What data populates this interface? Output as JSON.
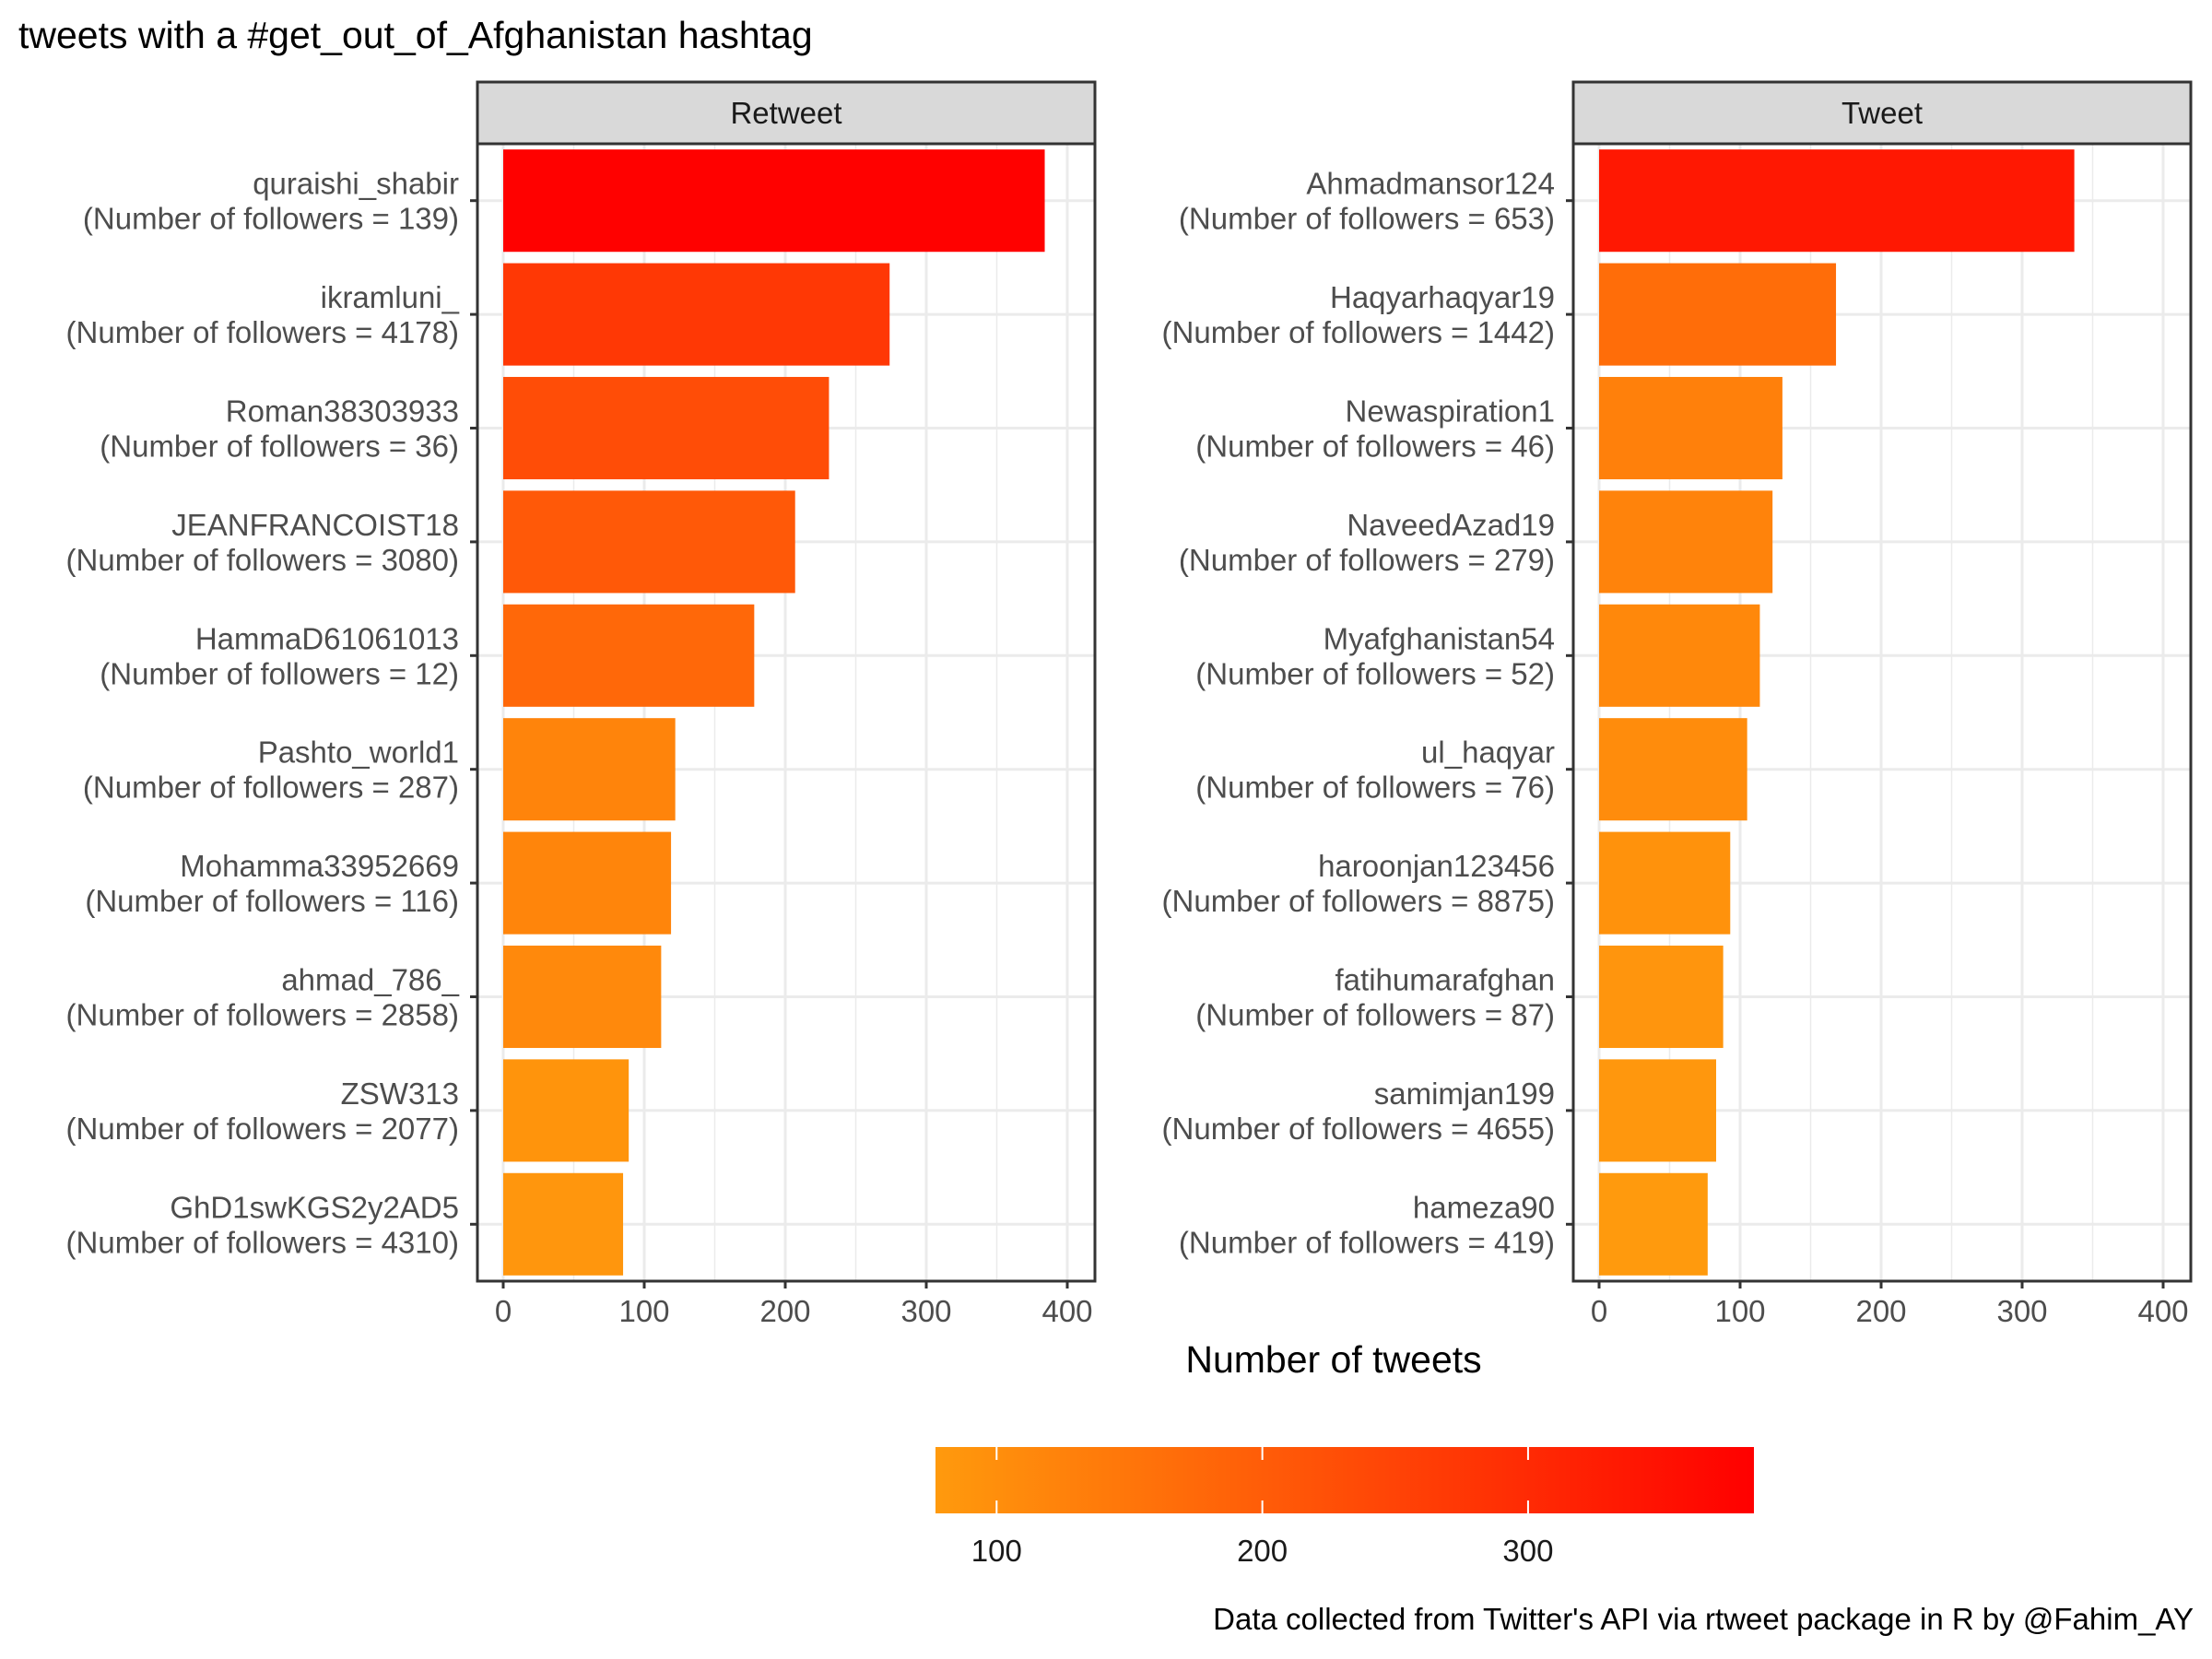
{
  "title": "tweets with a #get_out_of_Afghanistan hashtag",
  "caption": "Data collected from Twitter's API via rtweet package in R by @Fahim_AY",
  "chart_data": {
    "type": "bar",
    "orientation": "horizontal",
    "title": "tweets with a #get_out_of_Afghanistan hashtag",
    "xlabel": "Number of tweets",
    "ylabel": "",
    "xlim": [
      0,
      400
    ],
    "x_ticks": [
      0,
      100,
      200,
      300,
      400
    ],
    "grid": true,
    "color_scale": {
      "low_color": "#FF9A0D",
      "high_color": "#FF0000",
      "min": 77,
      "max": 385,
      "ticks": [
        100,
        200,
        300
      ],
      "legend_position": "bottom"
    },
    "panels": [
      {
        "name": "Retweet",
        "categories": [
          {
            "user": "quraishi_shabir",
            "label": "(Number of followers = 139)",
            "value": 384
          },
          {
            "user": "ikramluni_",
            "label": "(Number of followers = 4178)",
            "value": 274
          },
          {
            "user": "Roman38303933",
            "label": "(Number of followers = 36)",
            "value": 231
          },
          {
            "user": "JEANFRANCOIST18",
            "label": "(Number of followers = 3080)",
            "value": 207
          },
          {
            "user": "HammaD61061013",
            "label": "(Number of followers = 12)",
            "value": 178
          },
          {
            "user": "Pashto_world1",
            "label": "(Number of followers = 287)",
            "value": 122
          },
          {
            "user": "Mohamma33952669",
            "label": "(Number of followers = 116)",
            "value": 119
          },
          {
            "user": "ahmad_786_",
            "label": "(Number of followers = 2858)",
            "value": 112
          },
          {
            "user": "ZSW313",
            "label": "(Number of followers = 2077)",
            "value": 89
          },
          {
            "user": "GhD1swKGS2y2AD5",
            "label": "(Number of followers = 4310)",
            "value": 85
          }
        ]
      },
      {
        "name": "Tweet",
        "categories": [
          {
            "user": "Ahmadmansor124",
            "label": "(Number of followers = 653)",
            "value": 337
          },
          {
            "user": "Haqyarhaqyar19",
            "label": "(Number of followers = 1442)",
            "value": 168
          },
          {
            "user": "Newaspiration1",
            "label": "(Number of followers = 46)",
            "value": 130
          },
          {
            "user": "NaveedAzad19",
            "label": "(Number of followers = 279)",
            "value": 123
          },
          {
            "user": "Myafghanistan54",
            "label": "(Number of followers = 52)",
            "value": 114
          },
          {
            "user": "ul_haqyar",
            "label": "(Number of followers = 76)",
            "value": 105
          },
          {
            "user": "haroonjan123456",
            "label": "(Number of followers = 8875)",
            "value": 93
          },
          {
            "user": "fatihumarafghan",
            "label": "(Number of followers = 87)",
            "value": 88
          },
          {
            "user": "samimjan199",
            "label": "(Number of followers = 4655)",
            "value": 83
          },
          {
            "user": "hameza90",
            "label": "(Number of followers = 419)",
            "value": 77
          }
        ]
      }
    ]
  }
}
